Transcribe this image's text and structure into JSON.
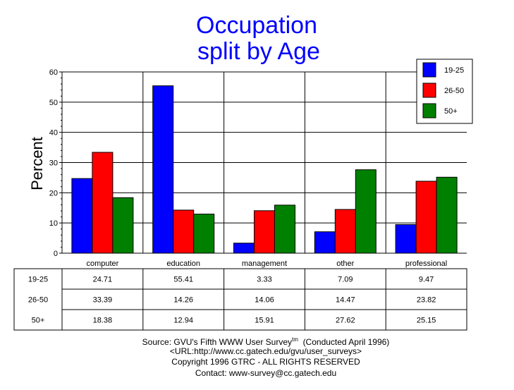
{
  "chart_data": {
    "type": "bar",
    "title": "Occupation",
    "subtitle": "split by Age",
    "ylabel": "Percent",
    "xlabel": "",
    "ylim": [
      0,
      60
    ],
    "yticks": [
      "0",
      "10",
      "20",
      "30",
      "40",
      "50",
      "60"
    ],
    "grid": true,
    "legend_placement": "top-right",
    "categories": [
      "computer",
      "education",
      "management",
      "other",
      "professional"
    ],
    "series": [
      {
        "name": "19-25",
        "color": "#0000ff",
        "values": [
          24.71,
          55.41,
          3.33,
          7.09,
          9.47
        ]
      },
      {
        "name": "26-50",
        "color": "#ff0000",
        "values": [
          33.39,
          14.26,
          14.06,
          14.47,
          23.82
        ]
      },
      {
        "name": "50+",
        "color": "#008000",
        "values": [
          18.38,
          12.94,
          15.91,
          27.62,
          25.15
        ]
      }
    ],
    "table": {
      "rows": [
        {
          "label": "19-25",
          "cells": [
            "24.71",
            "55.41",
            "3.33",
            "7.09",
            "9.47"
          ]
        },
        {
          "label": "26-50",
          "cells": [
            "33.39",
            "14.26",
            "14.06",
            "14.47",
            "23.82"
          ]
        },
        {
          "label": "50+",
          "cells": [
            "18.38",
            "12.94",
            "15.91",
            "27.62",
            "25.15"
          ]
        }
      ]
    }
  },
  "footer": {
    "source": "Source: GVU's Fifth WWW User Survey",
    "tm": "tm",
    "conducted": "(Conducted April 1996)",
    "url": "<URL:http://www.cc.gatech.edu/gvu/user_surveys>",
    "copyright": "Copyright 1996 GTRC -  ALL RIGHTS RESERVED",
    "contact": "Contact: www-survey@cc.gatech.edu"
  },
  "colors": {
    "title": "#0000ff"
  }
}
